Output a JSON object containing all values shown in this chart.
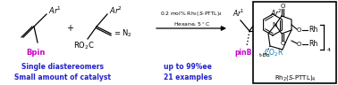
{
  "bg_color": "#ffffff",
  "magenta_color": "#cc00cc",
  "blue_color": "#2222cc",
  "cyan_color": "#0077bb",
  "black": "#000000",
  "conditions_line1": "0.2 mol% Rh$_2$($\\itS$-PTTL)$_4$",
  "conditions_line2": "Hexane, 5$^o$C",
  "blue_text1": "Single diastereomers",
  "blue_text2": "Small amount of catalyst",
  "blue_text3": "up to 99%ee",
  "blue_text4": "21 examples",
  "catalyst_label": "Rh$_2$($\\itS$-PTTL)$_4$"
}
